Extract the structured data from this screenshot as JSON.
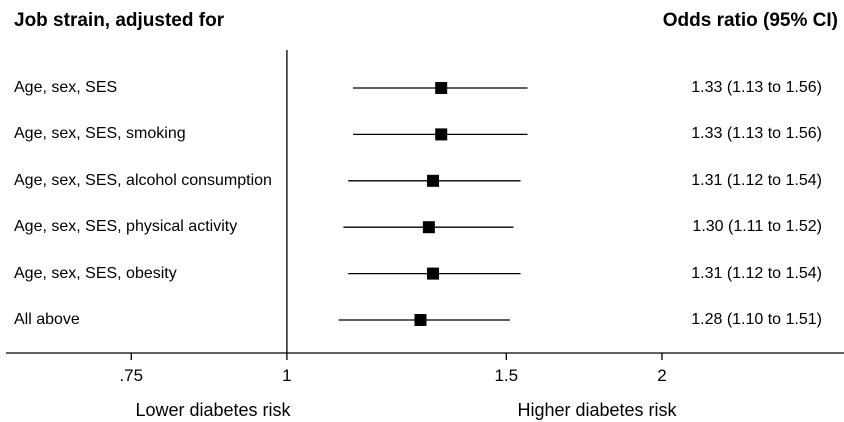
{
  "header": {
    "left_title": "Job strain, adjusted for",
    "right_title": "Odds ratio (95% CI)"
  },
  "chart_data": {
    "type": "forest",
    "scale": "log",
    "xlim": [
      0.595,
      2.8
    ],
    "reference_line": 1,
    "ticks": [
      {
        "value": 0.75,
        "label": ".75"
      },
      {
        "value": 1,
        "label": "1"
      },
      {
        "value": 1.5,
        "label": "1.5"
      },
      {
        "value": 2,
        "label": "2"
      }
    ],
    "xlabel_left": "Lower diabetes risk",
    "xlabel_right": "Higher diabetes risk",
    "marker_color": "#000000",
    "rows": [
      {
        "label": "Age, sex, SES",
        "or": 1.33,
        "lower": 1.13,
        "upper": 1.56,
        "text": "1.33 (1.13 to 1.56)"
      },
      {
        "label": "Age, sex, SES, smoking",
        "or": 1.33,
        "lower": 1.13,
        "upper": 1.56,
        "text": "1.33 (1.13 to 1.56)"
      },
      {
        "label": "Age, sex, SES, alcohol consumption",
        "or": 1.31,
        "lower": 1.12,
        "upper": 1.54,
        "text": "1.31 (1.12 to 1.54)"
      },
      {
        "label": "Age, sex, SES, physical activity",
        "or": 1.3,
        "lower": 1.11,
        "upper": 1.52,
        "text": "1.30 (1.11 to 1.52)"
      },
      {
        "label": "Age, sex, SES, obesity",
        "or": 1.31,
        "lower": 1.12,
        "upper": 1.54,
        "text": "1.31 (1.12 to 1.54)"
      },
      {
        "label": "All above",
        "or": 1.28,
        "lower": 1.1,
        "upper": 1.51,
        "text": "1.28 (1.10 to 1.51)"
      }
    ]
  }
}
